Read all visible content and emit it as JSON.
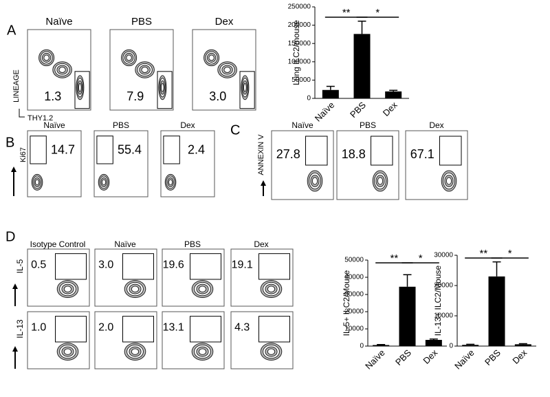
{
  "panel_a": {
    "letter": "A",
    "titles": [
      "Naïve",
      "PBS",
      "Dex"
    ],
    "gates": [
      "1.3",
      "7.9",
      "3.0"
    ],
    "y_label": "LINEAGE",
    "x_label": "THY1.2"
  },
  "panel_b": {
    "letter": "B",
    "titles": [
      "Naïve",
      "PBS",
      "Dex"
    ],
    "gates": [
      "14.7",
      "55.4",
      "2.4"
    ],
    "y_label": "Ki67"
  },
  "panel_c": {
    "letter": "C",
    "titles": [
      "Naïve",
      "PBS",
      "Dex"
    ],
    "gates": [
      "27.8",
      "18.8",
      "67.1"
    ],
    "y_label": "ANNEXIN V"
  },
  "panel_d": {
    "letter": "D",
    "titles": [
      "Isotype Control",
      "Naïve",
      "PBS",
      "Dex"
    ],
    "row_labels": [
      "IL-5",
      "IL-13"
    ],
    "gates": [
      [
        "0.5",
        "3.0",
        "19.6",
        "19.1"
      ],
      [
        "1.0",
        "2.0",
        "13.1",
        "4.3"
      ]
    ]
  },
  "chart_data": [
    {
      "type": "bar",
      "y_label": "Lung ILC2/mouse",
      "categories": [
        "Naïve",
        "PBS",
        "Dex"
      ],
      "values": [
        23000,
        176000,
        19000
      ],
      "errors": [
        10000,
        35000,
        3000
      ],
      "color": "#000000",
      "ylim": [
        0,
        250000
      ],
      "yticks": [
        0,
        50000,
        100000,
        150000,
        200000,
        250000
      ],
      "annotations": [
        "**",
        "*"
      ]
    },
    {
      "type": "bar",
      "y_label": "IL-5+ ILC2/Mouse",
      "categories": [
        "Naïve",
        "PBS",
        "Dex"
      ],
      "values": [
        600,
        34500,
        3600
      ],
      "errors": [
        300,
        7000,
        500
      ],
      "color": "#000000",
      "ylim": [
        0,
        50000
      ],
      "yticks": [
        0,
        10000,
        20000,
        30000,
        40000,
        50000
      ],
      "annotations": [
        "**",
        "*"
      ]
    },
    {
      "type": "bar",
      "y_label": "IL-13+ ILC2/Mouse",
      "categories": [
        "Naïve",
        "PBS",
        "Dex"
      ],
      "values": [
        400,
        23000,
        600
      ],
      "errors": [
        200,
        4800,
        200
      ],
      "color": "#000000",
      "ylim": [
        0,
        30000
      ],
      "yticks": [
        0,
        10000,
        20000,
        30000
      ],
      "annotations": [
        "**",
        "*"
      ]
    }
  ]
}
